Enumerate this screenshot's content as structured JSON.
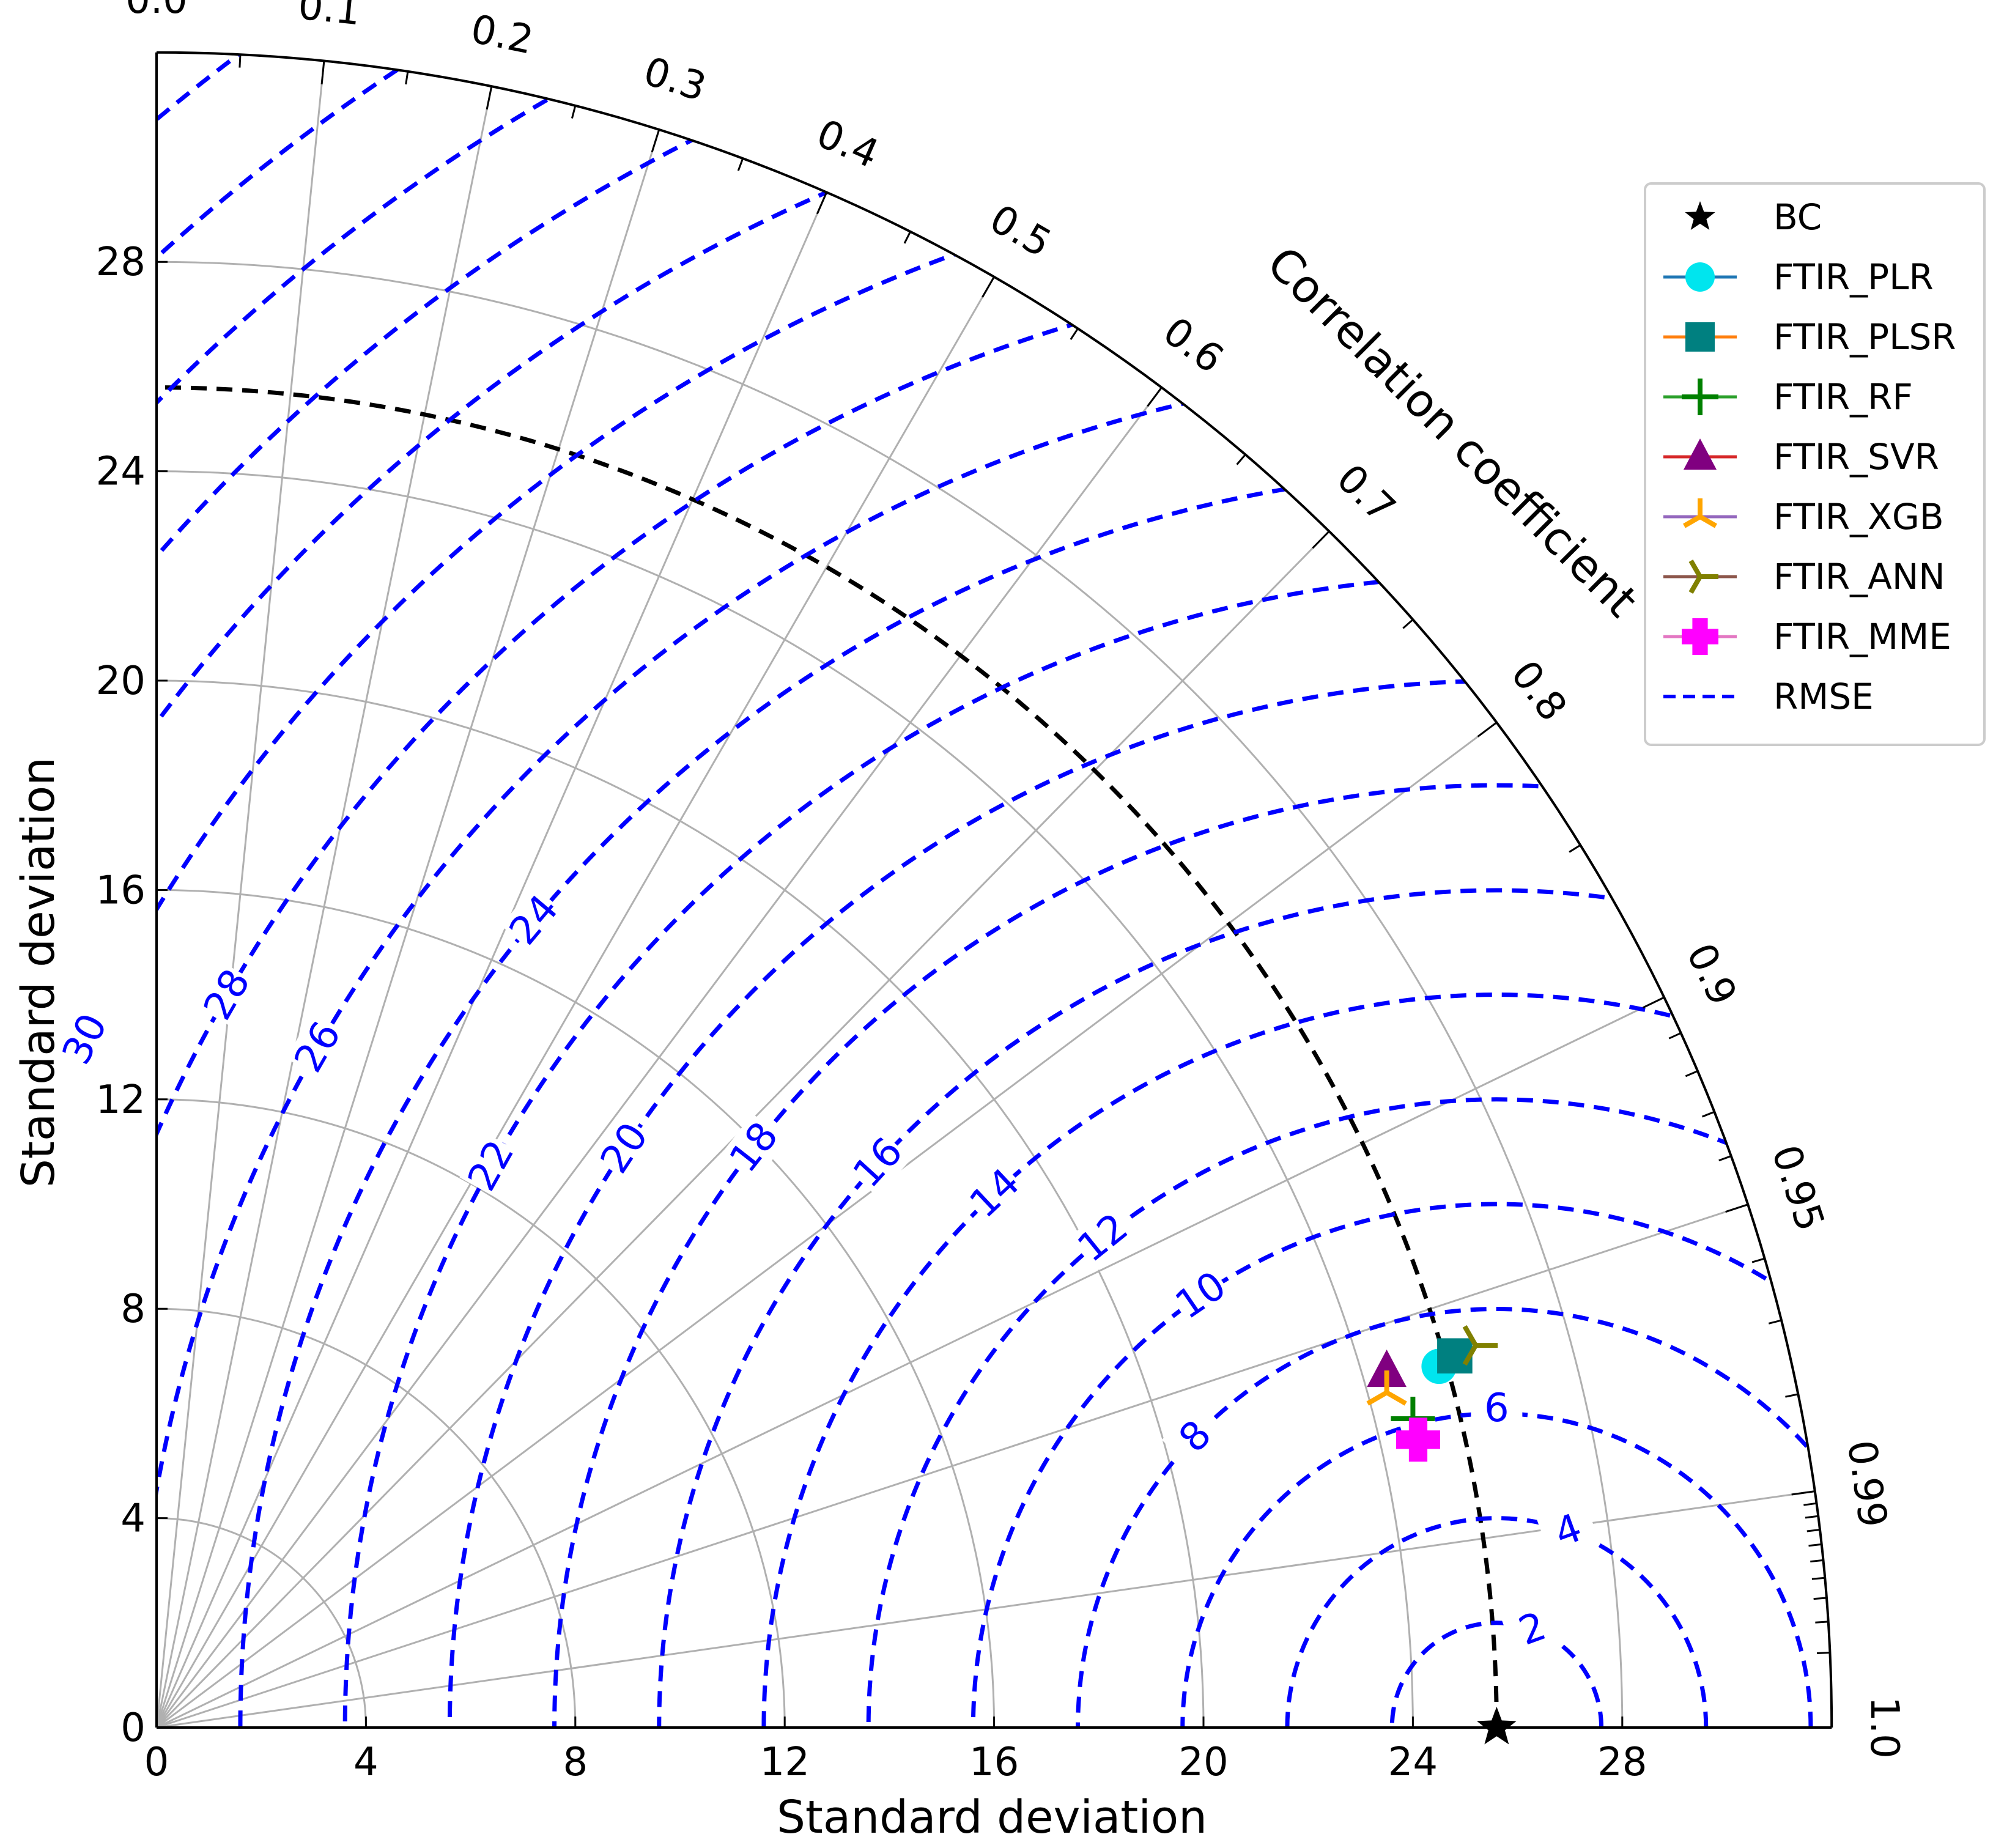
{
  "chart_data": {
    "type": "taylor",
    "xlabel": "Standard deviation",
    "ylabel": "Standard deviation",
    "correlation_label": "Correlation coefficient",
    "std_range": [
      0,
      32
    ],
    "std_ticks": [
      0,
      4,
      8,
      12,
      16,
      20,
      24,
      28
    ],
    "correlation_ticks": [
      "0.0",
      "0.1",
      "0.2",
      "0.3",
      "0.4",
      "0.5",
      "0.6",
      "0.7",
      "0.8",
      "0.9",
      "0.95",
      "0.99",
      "1.0"
    ],
    "reference_std": 25.6,
    "rmse_levels": [
      2,
      4,
      6,
      8,
      10,
      12,
      14,
      16,
      18,
      20,
      22,
      24,
      26,
      28,
      30,
      32,
      34,
      36,
      38,
      40
    ],
    "grid": true,
    "legend_position": "top-right",
    "legend": [
      "BC",
      "FTIR_PLR",
      "FTIR_PLSR",
      "FTIR_RF",
      "FTIR_SVR",
      "FTIR_XGB",
      "FTIR_ANN",
      "FTIR_MME",
      "RMSE"
    ],
    "points": [
      {
        "name": "BC",
        "x": 25.6,
        "y": 0.0,
        "marker": "star",
        "color": "#000000"
      },
      {
        "name": "FTIR_PLR",
        "x": 24.5,
        "y": 6.9,
        "marker": "circle",
        "color": "#00e5ee"
      },
      {
        "name": "FTIR_PLSR",
        "x": 24.8,
        "y": 7.1,
        "marker": "square",
        "color": "#008080"
      },
      {
        "name": "FTIR_RF",
        "x": 24.0,
        "y": 5.9,
        "marker": "plus",
        "color": "#008000"
      },
      {
        "name": "FTIR_SVR",
        "x": 23.5,
        "y": 6.8,
        "marker": "triangle",
        "color": "#800080"
      },
      {
        "name": "FTIR_XGB",
        "x": 23.5,
        "y": 6.4,
        "marker": "tri_up",
        "color": "#ffa500"
      },
      {
        "name": "FTIR_ANN",
        "x": 25.2,
        "y": 7.3,
        "marker": "tri_right",
        "color": "#808000"
      },
      {
        "name": "FTIR_MME",
        "x": 24.1,
        "y": 5.5,
        "marker": "cross",
        "color": "#ff00ff"
      }
    ],
    "legend_line_colors": [
      "#000000",
      "#1f77b4",
      "#ff7f0e",
      "#2ca02c",
      "#d62728",
      "#9467bd",
      "#8c564b",
      "#e377c2",
      "#0000ff"
    ],
    "rmse_color": "#0000ff"
  }
}
